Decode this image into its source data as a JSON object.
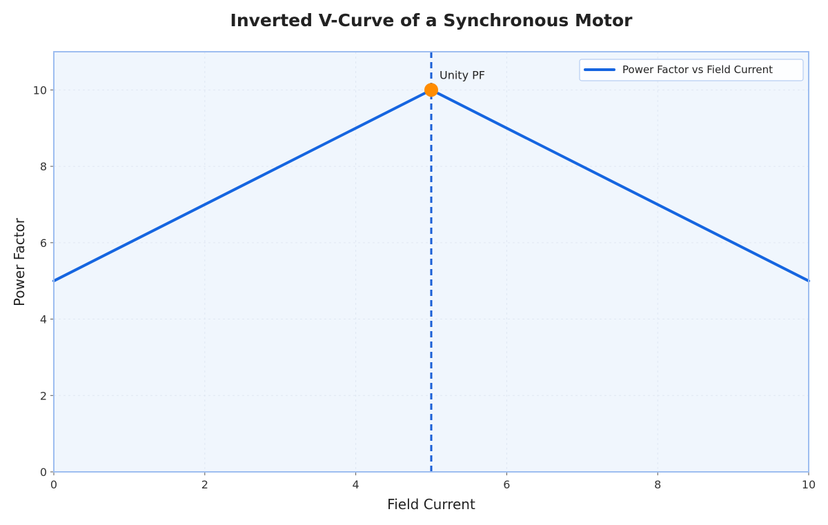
{
  "chart_data": {
    "type": "line",
    "title": "Inverted V-Curve of a Synchronous Motor",
    "xlabel": "Field Current",
    "ylabel": "Power Factor",
    "xlim": [
      0,
      10
    ],
    "ylim": [
      0,
      11
    ],
    "xticks": [
      0,
      2,
      4,
      6,
      8,
      10
    ],
    "yticks": [
      0,
      2,
      4,
      6,
      8,
      10
    ],
    "grid": true,
    "legend_position": "top-right",
    "series": [
      {
        "name": "Power Factor vs Field Current",
        "color": "#1565e0",
        "x": [
          0,
          5,
          10
        ],
        "y": [
          5,
          10,
          5
        ]
      }
    ],
    "vline": {
      "x": 5,
      "style": "dashed",
      "color": "#1a5fd6"
    },
    "annotation": {
      "text": "Unity PF",
      "x": 5,
      "y": 10,
      "marker_color": "#ff8c00"
    },
    "colors": {
      "plot_background": "#f0f6fd",
      "frame": "#9dbdf0",
      "grid": "#dfe7f2"
    }
  }
}
